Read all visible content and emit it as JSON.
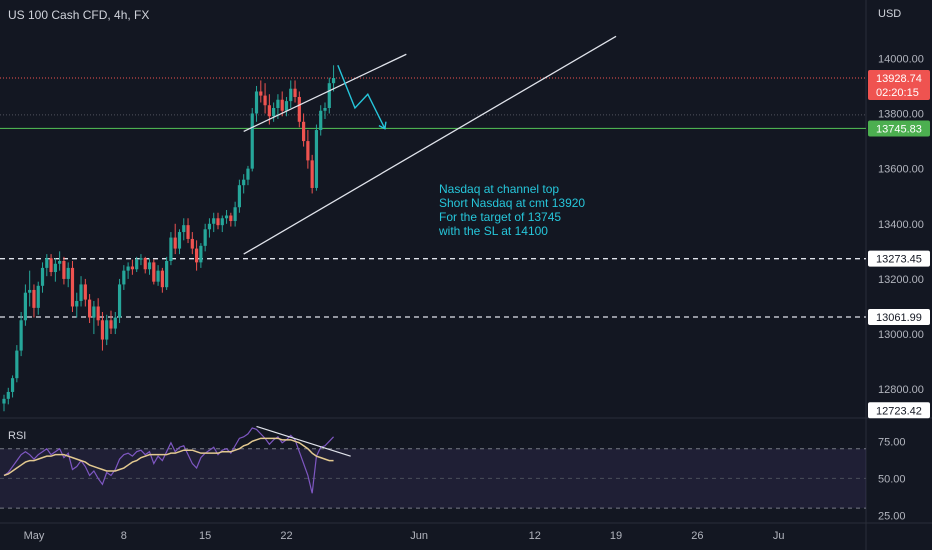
{
  "header": {
    "title": "US 100 Cash CFD, 4h, FX",
    "currency": "USD"
  },
  "rsi_label": "RSI",
  "note_lines": [
    "Nasdaq at channel top",
    "Short Nasdaq at cmt 13920",
    "For the target of 13745",
    "with the SL at 14100"
  ],
  "colors": {
    "background": "#131722",
    "up": "#26a69a",
    "down": "#ef5350",
    "text": "#d1d4dc",
    "axis_text": "#b2b5be",
    "grid": "#2a2e39",
    "annotation": "#26c6da",
    "rsi_line": "#7e57c2",
    "rsi_ma": "#e3c990",
    "target_line": "#4caf50"
  },
  "chart_data": [
    {
      "type": "candlestick",
      "title": "US 100 Cash CFD, 4h, FX",
      "ylabel": "USD",
      "ylim": [
        12710,
        14190
      ],
      "y_ticks": [
        12800,
        13000,
        13200,
        13400,
        13600,
        13800,
        14000
      ],
      "y_tick_labels": [
        "12800.00",
        "13000.00",
        "13200.00",
        "13400.00",
        "13600.00",
        "13800.00",
        "14000.00"
      ],
      "x_labels": [
        {
          "label": "May",
          "bar": 7
        },
        {
          "label": "8",
          "bar": 28
        },
        {
          "label": "15",
          "bar": 47
        },
        {
          "label": "22",
          "bar": 66
        },
        {
          "label": "Jun",
          "bar": 97
        },
        {
          "label": "12",
          "bar": 124
        },
        {
          "label": "19",
          "bar": 143
        },
        {
          "label": "26",
          "bar": 162
        },
        {
          "label": "Ju",
          "bar": 181
        }
      ],
      "candles": [
        [
          12748,
          12780,
          12720,
          12765
        ],
        [
          12765,
          12805,
          12745,
          12790
        ],
        [
          12790,
          12850,
          12770,
          12840
        ],
        [
          12840,
          12960,
          12825,
          12940
        ],
        [
          12940,
          13080,
          12920,
          13050
        ],
        [
          13050,
          13180,
          13030,
          13150
        ],
        [
          13150,
          13230,
          13100,
          13160
        ],
        [
          13160,
          13180,
          13060,
          13095
        ],
        [
          13095,
          13190,
          13070,
          13175
        ],
        [
          13175,
          13260,
          13150,
          13240
        ],
        [
          13240,
          13290,
          13210,
          13275
        ],
        [
          13275,
          13290,
          13210,
          13225
        ],
        [
          13225,
          13275,
          13190,
          13255
        ],
        [
          13255,
          13300,
          13230,
          13265
        ],
        [
          13265,
          13280,
          13180,
          13200
        ],
        [
          13200,
          13260,
          13170,
          13240
        ],
        [
          13240,
          13265,
          13080,
          13100
        ],
        [
          13100,
          13150,
          13060,
          13120
        ],
        [
          13120,
          13210,
          13100,
          13180
        ],
        [
          13180,
          13200,
          13100,
          13125
        ],
        [
          13125,
          13145,
          13040,
          13060
        ],
        [
          13060,
          13120,
          13000,
          13100
        ],
        [
          13100,
          13130,
          13030,
          13050
        ],
        [
          13050,
          13080,
          12940,
          12980
        ],
        [
          12980,
          13070,
          12960,
          13050
        ],
        [
          13050,
          13085,
          13000,
          13020
        ],
        [
          13020,
          13080,
          13000,
          13060
        ],
        [
          13060,
          13200,
          13040,
          13180
        ],
        [
          13180,
          13250,
          13160,
          13230
        ],
        [
          13230,
          13260,
          13200,
          13245
        ],
        [
          13245,
          13270,
          13215,
          13235
        ],
        [
          13235,
          13280,
          13225,
          13270
        ],
        [
          13270,
          13290,
          13250,
          13275
        ],
        [
          13275,
          13280,
          13220,
          13235
        ],
        [
          13235,
          13275,
          13215,
          13260
        ],
        [
          13260,
          13270,
          13180,
          13190
        ],
        [
          13190,
          13250,
          13175,
          13230
        ],
        [
          13230,
          13240,
          13150,
          13170
        ],
        [
          13170,
          13280,
          13160,
          13265
        ],
        [
          13265,
          13370,
          13250,
          13350
        ],
        [
          13350,
          13400,
          13290,
          13310
        ],
        [
          13310,
          13380,
          13290,
          13370
        ],
        [
          13370,
          13420,
          13340,
          13395
        ],
        [
          13395,
          13420,
          13330,
          13345
        ],
        [
          13345,
          13370,
          13290,
          13310
        ],
        [
          13310,
          13340,
          13230,
          13260
        ],
        [
          13260,
          13330,
          13240,
          13320
        ],
        [
          13320,
          13400,
          13300,
          13380
        ],
        [
          13380,
          13420,
          13350,
          13400
        ],
        [
          13400,
          13440,
          13370,
          13420
        ],
        [
          13420,
          13440,
          13380,
          13395
        ],
        [
          13395,
          13430,
          13370,
          13420
        ],
        [
          13420,
          13450,
          13400,
          13430
        ],
        [
          13430,
          13440,
          13390,
          13410
        ],
        [
          13410,
          13480,
          13390,
          13460
        ],
        [
          13460,
          13560,
          13440,
          13540
        ],
        [
          13540,
          13580,
          13510,
          13560
        ],
        [
          13560,
          13610,
          13540,
          13600
        ],
        [
          13600,
          13820,
          13590,
          13800
        ],
        [
          13800,
          13900,
          13770,
          13880
        ],
        [
          13880,
          13920,
          13840,
          13865
        ],
        [
          13865,
          13910,
          13800,
          13830
        ],
        [
          13830,
          13870,
          13760,
          13790
        ],
        [
          13790,
          13840,
          13770,
          13820
        ],
        [
          13820,
          13870,
          13780,
          13850
        ],
        [
          13850,
          13880,
          13790,
          13810
        ],
        [
          13810,
          13860,
          13790,
          13845
        ],
        [
          13845,
          13920,
          13820,
          13890
        ],
        [
          13890,
          13920,
          13840,
          13860
        ],
        [
          13860,
          13880,
          13750,
          13770
        ],
        [
          13770,
          13800,
          13680,
          13700
        ],
        [
          13700,
          13740,
          13600,
          13630
        ],
        [
          13630,
          13650,
          13510,
          13530
        ],
        [
          13530,
          13760,
          13520,
          13740
        ],
        [
          13740,
          13830,
          13720,
          13810
        ],
        [
          13810,
          13840,
          13780,
          13820
        ],
        [
          13820,
          13930,
          13800,
          13910
        ],
        [
          13910,
          13975,
          13880,
          13928.74
        ]
      ],
      "candle_x_start": 1,
      "candle_x_step": 5,
      "price_labels": [
        {
          "value": 13928.74,
          "text": "13928.74",
          "sub": "02:20:15",
          "kind": "current"
        },
        {
          "value": 13745.83,
          "text": "13745.83",
          "kind": "target"
        },
        {
          "value": 13273.45,
          "text": "13273.45",
          "kind": "level"
        },
        {
          "value": 13061.99,
          "text": "13061.99",
          "kind": "level"
        },
        {
          "value": 12723.42,
          "text": "12723.42",
          "kind": "low"
        }
      ],
      "dashed_levels": [
        13273.45,
        13061.99
      ],
      "trendlines": [
        {
          "from": [
            56,
            13735
          ],
          "to": [
            94,
            14015
          ]
        },
        {
          "from": [
            56,
            13290
          ],
          "to": [
            143,
            14080
          ]
        }
      ],
      "projection": [
        [
          78,
          13975
        ],
        [
          82,
          13820
        ],
        [
          85,
          13870
        ],
        [
          89,
          13745
        ]
      ],
      "annotation": [
        "Nasdaq at channel top",
        "Short Nasdaq at cmt 13920",
        "For the target of 13745",
        "with the SL at 14100"
      ]
    },
    {
      "type": "line",
      "title": "RSI",
      "ylim": [
        22,
        88
      ],
      "y_ticks": [
        25,
        50,
        75
      ],
      "y_tick_labels": [
        "25.00",
        "50.00",
        "75.00"
      ],
      "levels": [
        70,
        30
      ],
      "series": [
        {
          "values": [
            52,
            54,
            58,
            62,
            66,
            68,
            66,
            63,
            66,
            68,
            70,
            66,
            68,
            70,
            64,
            67,
            56,
            58,
            62,
            58,
            52,
            55,
            50,
            46,
            54,
            52,
            56,
            63,
            66,
            67,
            65,
            68,
            69,
            66,
            68,
            60,
            65,
            62,
            68,
            74,
            68,
            71,
            72,
            66,
            60,
            57,
            64,
            67,
            69,
            71,
            66,
            69,
            70,
            67,
            72,
            77,
            78,
            80,
            84,
            83,
            80,
            77,
            73,
            76,
            78,
            74,
            76,
            79,
            76,
            68,
            60,
            52,
            40,
            65,
            71,
            72,
            75,
            78
          ]
        },
        {
          "values": [
            52,
            53,
            55,
            57,
            59,
            61,
            62,
            62,
            63,
            64,
            65,
            65,
            66,
            66,
            66,
            65,
            64,
            63,
            62,
            61,
            59,
            58,
            57,
            56,
            55,
            55,
            55,
            56,
            57,
            59,
            61,
            62,
            64,
            65,
            66,
            66,
            66,
            66,
            66,
            67,
            67,
            68,
            69,
            69,
            69,
            68,
            67,
            67,
            67,
            67,
            67,
            68,
            68,
            68,
            69,
            70,
            72,
            73,
            75,
            76,
            77,
            77,
            77,
            77,
            77,
            76,
            76,
            76,
            75,
            74,
            72,
            70,
            67,
            65,
            64,
            63,
            62,
            62
          ]
        }
      ],
      "trendline": {
        "from": [
          59,
          85
        ],
        "to": [
          81,
          65
        ]
      }
    }
  ]
}
